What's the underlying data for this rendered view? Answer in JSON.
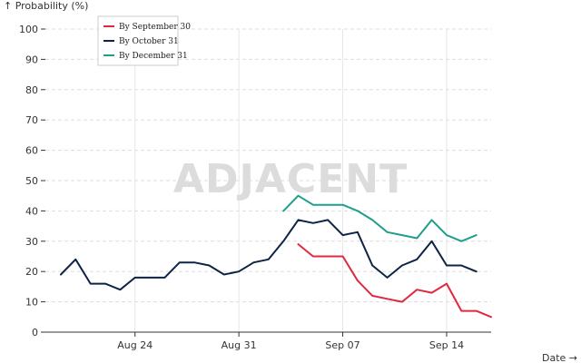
{
  "chart_data": {
    "type": "line",
    "xlabel": "Date →",
    "ylabel": "↑ Probability (%)",
    "ylim": [
      0,
      100
    ],
    "y_ticks": [
      0,
      10,
      20,
      30,
      40,
      50,
      60,
      70,
      80,
      90,
      100
    ],
    "x_range": [
      "2024-08-19",
      "2024-09-17"
    ],
    "x_ticks": [
      {
        "date": "2024-08-24",
        "label": "Aug 24"
      },
      {
        "date": "2024-08-31",
        "label": "Aug 31"
      },
      {
        "date": "2024-09-07",
        "label": "Sep 07"
      },
      {
        "date": "2024-09-14",
        "label": "Sep 14"
      }
    ],
    "grid": true,
    "legend_position": "top-left",
    "watermark": "ADJACENT",
    "series": [
      {
        "name": "By September 30",
        "color": "#e0293f",
        "points": [
          [
            "2024-09-04",
            29
          ],
          [
            "2024-09-05",
            25
          ],
          [
            "2024-09-06",
            25
          ],
          [
            "2024-09-07",
            25
          ],
          [
            "2024-09-08",
            17
          ],
          [
            "2024-09-09",
            12
          ],
          [
            "2024-09-10",
            11
          ],
          [
            "2024-09-11",
            10
          ],
          [
            "2024-09-12",
            14
          ],
          [
            "2024-09-13",
            13
          ],
          [
            "2024-09-14",
            16
          ],
          [
            "2024-09-15",
            7
          ],
          [
            "2024-09-16",
            7
          ],
          [
            "2024-09-17",
            5
          ]
        ]
      },
      {
        "name": "By October 31",
        "color": "#0d2447",
        "points": [
          [
            "2024-08-19",
            19
          ],
          [
            "2024-08-20",
            24
          ],
          [
            "2024-08-21",
            16
          ],
          [
            "2024-08-22",
            16
          ],
          [
            "2024-08-23",
            14
          ],
          [
            "2024-08-24",
            18
          ],
          [
            "2024-08-25",
            18
          ],
          [
            "2024-08-26",
            18
          ],
          [
            "2024-08-27",
            23
          ],
          [
            "2024-08-28",
            23
          ],
          [
            "2024-08-29",
            22
          ],
          [
            "2024-08-30",
            19
          ],
          [
            "2024-08-31",
            20
          ],
          [
            "2024-09-01",
            23
          ],
          [
            "2024-09-02",
            24
          ],
          [
            "2024-09-03",
            30
          ],
          [
            "2024-09-04",
            37
          ],
          [
            "2024-09-05",
            36
          ],
          [
            "2024-09-06",
            37
          ],
          [
            "2024-09-07",
            32
          ],
          [
            "2024-09-08",
            33
          ],
          [
            "2024-09-09",
            22
          ],
          [
            "2024-09-10",
            18
          ],
          [
            "2024-09-11",
            22
          ],
          [
            "2024-09-12",
            24
          ],
          [
            "2024-09-13",
            30
          ],
          [
            "2024-09-14",
            22
          ],
          [
            "2024-09-15",
            22
          ],
          [
            "2024-09-16",
            20
          ]
        ]
      },
      {
        "name": "By December 31",
        "color": "#1f9e8b",
        "points": [
          [
            "2024-09-03",
            40
          ],
          [
            "2024-09-04",
            45
          ],
          [
            "2024-09-05",
            42
          ],
          [
            "2024-09-06",
            42
          ],
          [
            "2024-09-07",
            42
          ],
          [
            "2024-09-08",
            40
          ],
          [
            "2024-09-09",
            37
          ],
          [
            "2024-09-10",
            33
          ],
          [
            "2024-09-11",
            32
          ],
          [
            "2024-09-12",
            31
          ],
          [
            "2024-09-13",
            37
          ],
          [
            "2024-09-14",
            32
          ],
          [
            "2024-09-15",
            30
          ],
          [
            "2024-09-16",
            32
          ]
        ]
      }
    ]
  }
}
